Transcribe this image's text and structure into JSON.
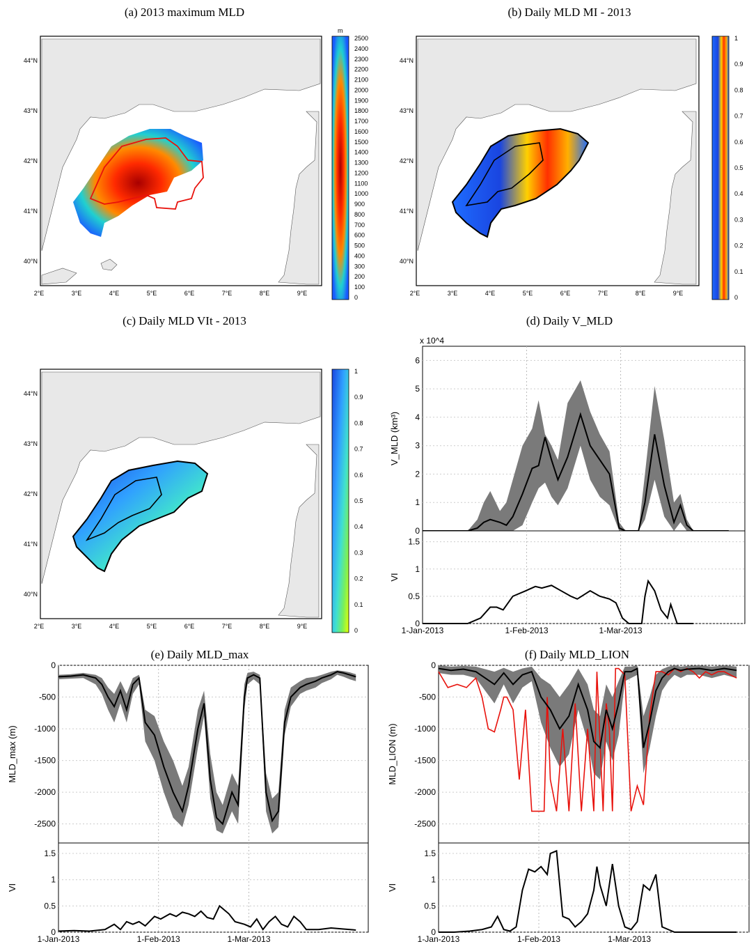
{
  "maps": [
    {
      "id": "a",
      "title": "(a) 2013 maximum MLD",
      "colorbar": {
        "unit": "m",
        "ticks": [
          "2500",
          "2400",
          "2300",
          "2200",
          "2100",
          "2000",
          "1900",
          "1800",
          "1700",
          "1600",
          "1500",
          "1400",
          "1300",
          "1200",
          "1100",
          "1000",
          "900",
          "800",
          "700",
          "600",
          "500",
          "400",
          "300",
          "200",
          "100",
          "0"
        ]
      },
      "lat_labels": [
        "44°N",
        "43°N",
        "42°N",
        "41°N",
        "40°N"
      ],
      "lon_labels": [
        "2°E",
        "3°E",
        "4°E",
        "5°E",
        "6°E",
        "7°E",
        "8°E",
        "9°E"
      ]
    },
    {
      "id": "b",
      "title": "(b) Daily MLD MI - 2013",
      "colorbar": {
        "unit": "",
        "ticks": [
          "1",
          "0.9",
          "0.8",
          "0.7",
          "0.6",
          "0.5",
          "0.4",
          "0.3",
          "0.2",
          "0.1",
          "0"
        ]
      },
      "lat_labels": [
        "44°N",
        "43°N",
        "42°N",
        "41°N",
        "40°N"
      ],
      "lon_labels": [
        "2°E",
        "3°E",
        "4°E",
        "5°E",
        "6°E",
        "7°E",
        "8°E",
        "9°E"
      ]
    },
    {
      "id": "c",
      "title": "(c) Daily MLD VIt - 2013",
      "colorbar": {
        "unit": "",
        "ticks": [
          "1",
          "0.9",
          "0.8",
          "0.7",
          "0.6",
          "0.5",
          "0.4",
          "0.3",
          "0.2",
          "0.1",
          "0"
        ]
      },
      "lat_labels": [
        "44°N",
        "43°N",
        "42°N",
        "41°N",
        "40°N"
      ],
      "lon_labels": [
        "2°E",
        "3°E",
        "4°E",
        "5°E",
        "6°E",
        "7°E",
        "8°E",
        "9°E"
      ]
    }
  ],
  "chart_data": [
    {
      "id": "d",
      "type": "area",
      "title": "(d) Daily V_MLD",
      "ylabel": "V_MLD (km³)",
      "y_multiplier": "x 10^4",
      "ylim": [
        0,
        6.5
      ],
      "yticks": [
        "0",
        "1",
        "2",
        "3",
        "4",
        "5",
        "6"
      ],
      "x": [
        0,
        7,
        14,
        17,
        19,
        21,
        24,
        26,
        28,
        31,
        34,
        36,
        38,
        40,
        42,
        45,
        49,
        52,
        55,
        58,
        61,
        63,
        65,
        67,
        69,
        72,
        75,
        78,
        80,
        82,
        84,
        86,
        88,
        90,
        95
      ],
      "mean": [
        0,
        0,
        0,
        0.1,
        0.3,
        0.4,
        0.3,
        0.2,
        0.5,
        1.3,
        2.2,
        2.3,
        3.3,
        2.5,
        1.8,
        2.6,
        4.1,
        3.0,
        2.5,
        2.0,
        0.1,
        0,
        0,
        0,
        1.0,
        3.4,
        1.6,
        0.3,
        0.9,
        0.2,
        0,
        0,
        0,
        0,
        0
      ],
      "upper": [
        0,
        0,
        0,
        0.4,
        1.0,
        1.4,
        0.7,
        1.0,
        1.8,
        3.0,
        3.6,
        4.6,
        3.4,
        3.0,
        2.5,
        4.5,
        5.3,
        4.2,
        3.4,
        2.8,
        0.3,
        0,
        0,
        0,
        2.0,
        5.1,
        3.2,
        1.0,
        1.3,
        0.4,
        0,
        0,
        0,
        0,
        0
      ],
      "lower": [
        0,
        0,
        0,
        0,
        0,
        0,
        0,
        0,
        0,
        0.2,
        1.0,
        1.5,
        1.7,
        1.2,
        0.9,
        1.5,
        3.0,
        1.8,
        1.2,
        0.9,
        0,
        0,
        0,
        0,
        0.4,
        1.8,
        0.5,
        0,
        0.3,
        0,
        0,
        0,
        0,
        0,
        0
      ]
    },
    {
      "id": "d-vi",
      "type": "line",
      "ylabel": "VI",
      "ylim": [
        0,
        1.7
      ],
      "yticks": [
        "0",
        "0.5",
        "1",
        "1.5"
      ],
      "xticks": [
        "1-Jan-2013",
        "1-Feb-2013",
        "1-Mar-2013"
      ],
      "x": [
        0,
        8,
        14,
        18,
        21,
        23,
        25,
        28,
        32,
        35,
        37,
        40,
        43,
        46,
        48,
        52,
        55,
        58,
        60,
        62,
        64,
        66,
        68,
        69,
        70,
        72,
        74,
        76,
        77,
        79,
        80,
        82,
        84
      ],
      "values": [
        0,
        0,
        0,
        0.1,
        0.3,
        0.3,
        0.25,
        0.5,
        0.6,
        0.68,
        0.65,
        0.7,
        0.6,
        0.5,
        0.45,
        0.6,
        0.5,
        0.45,
        0.38,
        0.1,
        0,
        0,
        0,
        0.5,
        0.78,
        0.6,
        0.25,
        0.1,
        0.35,
        0,
        0,
        0,
        0
      ]
    },
    {
      "id": "e",
      "type": "area",
      "title": "(e) Daily MLD_max",
      "ylabel": "MLD_max (m)",
      "ylim": [
        -2800,
        0
      ],
      "yticks": [
        "0",
        "-500",
        "-1000",
        "-1500",
        "-2000",
        "-2500"
      ],
      "x": [
        0,
        4,
        8,
        12,
        14,
        16,
        18,
        20,
        22,
        24,
        26,
        28,
        31,
        34,
        37,
        40,
        42,
        45,
        47,
        49,
        51,
        53,
        56,
        58,
        60,
        61,
        63,
        65,
        67,
        69,
        71,
        73,
        75,
        78,
        80,
        83,
        85,
        88,
        90,
        92,
        94,
        96
      ],
      "mean": [
        -180,
        -170,
        -150,
        -200,
        -300,
        -500,
        -650,
        -400,
        -700,
        -300,
        -200,
        -900,
        -1100,
        -1600,
        -2000,
        -2300,
        -1900,
        -1000,
        -600,
        -1800,
        -2400,
        -2500,
        -2000,
        -2200,
        -500,
        -200,
        -150,
        -200,
        -2000,
        -2450,
        -2300,
        -900,
        -500,
        -350,
        -300,
        -250,
        -200,
        -150,
        -100,
        -120,
        -150,
        -180
      ],
      "upper": [
        -150,
        -140,
        -120,
        -150,
        -200,
        -350,
        -450,
        -250,
        -450,
        -200,
        -150,
        -700,
        -800,
        -1200,
        -1500,
        -1900,
        -1600,
        -700,
        -400,
        -1400,
        -2000,
        -2200,
        -1700,
        -1900,
        -300,
        -120,
        -100,
        -150,
        -1700,
        -2100,
        -2000,
        -700,
        -350,
        -250,
        -200,
        -180,
        -150,
        -100,
        -80,
        -90,
        -110,
        -140
      ],
      "lower": [
        -220,
        -210,
        -200,
        -300,
        -450,
        -700,
        -900,
        -600,
        -900,
        -450,
        -300,
        -1200,
        -1500,
        -2000,
        -2400,
        -2550,
        -2200,
        -1300,
        -800,
        -2100,
        -2600,
        -2650,
        -2300,
        -2500,
        -700,
        -300,
        -220,
        -300,
        -2300,
        -2650,
        -2550,
        -1100,
        -650,
        -450,
        -400,
        -350,
        -280,
        -220,
        -150,
        -180,
        -220,
        -250
      ]
    },
    {
      "id": "e-vi",
      "type": "line",
      "ylabel": "VI",
      "ylim": [
        0,
        1.7
      ],
      "yticks": [
        "0",
        "0.5",
        "1",
        "1.5"
      ],
      "xticks": [
        "1-Jan-2013",
        "1-Feb-2013",
        "1-Mar-2013"
      ],
      "x": [
        0,
        5,
        10,
        15,
        18,
        20,
        22,
        24,
        26,
        28,
        31,
        33,
        36,
        38,
        40,
        42,
        44,
        46,
        48,
        50,
        52,
        55,
        57,
        60,
        62,
        64,
        66,
        68,
        70,
        72,
        74,
        76,
        78,
        80,
        84,
        88,
        92,
        96
      ],
      "values": [
        0.02,
        0.03,
        0.02,
        0.05,
        0.15,
        0.05,
        0.2,
        0.15,
        0.2,
        0.12,
        0.3,
        0.25,
        0.35,
        0.3,
        0.38,
        0.35,
        0.3,
        0.4,
        0.28,
        0.25,
        0.5,
        0.35,
        0.2,
        0.15,
        0.1,
        0.25,
        0.05,
        0.2,
        0.3,
        0.15,
        0.1,
        0.3,
        0.2,
        0.05,
        0.05,
        0.08,
        0.06,
        0.04
      ]
    },
    {
      "id": "f",
      "type": "area",
      "title": "(f) Daily MLD_LION",
      "ylabel": "MLD_LION (m)",
      "ylim": [
        -2800,
        0
      ],
      "yticks": [
        "0",
        "-500",
        "-1000",
        "-1500",
        "-2000",
        "-2500"
      ],
      "x": [
        0,
        4,
        8,
        12,
        15,
        18,
        21,
        24,
        27,
        30,
        33,
        36,
        39,
        42,
        45,
        48,
        50,
        52,
        54,
        56,
        58,
        60,
        62,
        64,
        66,
        68,
        70,
        72,
        74,
        76,
        78,
        80,
        84,
        88,
        92,
        96
      ],
      "mean": [
        -50,
        -80,
        -60,
        -100,
        -200,
        -300,
        -120,
        -300,
        -150,
        -100,
        -500,
        -700,
        -1000,
        -800,
        -300,
        -700,
        -1200,
        -1300,
        -700,
        -1000,
        -600,
        -100,
        -100,
        -50,
        -1300,
        -900,
        -400,
        -200,
        -100,
        -50,
        -80,
        -60,
        -50,
        -80,
        -50,
        -80
      ],
      "upper": [
        0,
        -20,
        -10,
        -20,
        -60,
        -100,
        -40,
        -100,
        -50,
        -20,
        -200,
        -300,
        -500,
        -300,
        -50,
        -300,
        -700,
        -800,
        -300,
        -500,
        -250,
        -20,
        -20,
        0,
        -800,
        -500,
        -150,
        -60,
        -20,
        0,
        -20,
        -10,
        0,
        -20,
        0,
        -20
      ],
      "lower": [
        -120,
        -150,
        -150,
        -200,
        -400,
        -600,
        -300,
        -600,
        -350,
        -250,
        -900,
        -1300,
        -1600,
        -1400,
        -700,
        -1200,
        -1700,
        -1800,
        -1200,
        -1500,
        -1100,
        -250,
        -200,
        -150,
        -1700,
        -1300,
        -800,
        -400,
        -250,
        -150,
        -200,
        -150,
        -150,
        -200,
        -150,
        -200
      ]
    },
    {
      "id": "f-red",
      "type": "line",
      "series_color": "#e8120c",
      "x": [
        0,
        3,
        6,
        9,
        12,
        14,
        16,
        18,
        20,
        21,
        22,
        24,
        26,
        28,
        30,
        32,
        34,
        35,
        36,
        38,
        40,
        42,
        44,
        46,
        48,
        50,
        51,
        52,
        53,
        54,
        55,
        56,
        57,
        58,
        59,
        60,
        62,
        64,
        66,
        68,
        70,
        72,
        74,
        76,
        78,
        80,
        82,
        84,
        86,
        88,
        90,
        92,
        94,
        96
      ],
      "values": [
        -100,
        -350,
        -300,
        -350,
        -200,
        -500,
        -1000,
        -1050,
        -700,
        -500,
        -500,
        -700,
        -1800,
        -700,
        -2300,
        -2300,
        -2300,
        -500,
        -1800,
        -2300,
        -1000,
        -2300,
        -600,
        -2300,
        -1000,
        -2300,
        -100,
        -1200,
        -2300,
        -600,
        -1000,
        -2300,
        -50,
        -50,
        -100,
        -150,
        -2300,
        -1900,
        -2200,
        -800,
        -100,
        -100,
        -150,
        -50,
        -100,
        -50,
        -100,
        -200,
        -100,
        -150,
        -100,
        -100,
        -150,
        -200
      ]
    },
    {
      "id": "f-vi",
      "type": "line",
      "ylabel": "VI",
      "ylim": [
        0,
        1.7
      ],
      "yticks": [
        "0",
        "0.5",
        "1",
        "1.5"
      ],
      "xticks": [
        "1-Jan-2013",
        "1-Feb-2013",
        "1-Mar-2013"
      ],
      "x": [
        0,
        5,
        10,
        14,
        17,
        19,
        21,
        23,
        25,
        27,
        29,
        31,
        33,
        35,
        36,
        38,
        40,
        42,
        44,
        46,
        48,
        50,
        51,
        52,
        54,
        56,
        58,
        60,
        62,
        64,
        66,
        68,
        70,
        72,
        74,
        76,
        78,
        80,
        85,
        90,
        96
      ],
      "values": [
        0,
        0,
        0.02,
        0.05,
        0.1,
        0.3,
        0.05,
        0.02,
        0.1,
        0.8,
        1.2,
        1.15,
        1.25,
        1.1,
        1.5,
        1.55,
        0.3,
        0.25,
        0.1,
        0.2,
        0.35,
        0.8,
        1.25,
        0.9,
        0.5,
        1.3,
        0.5,
        0.1,
        0.05,
        0.2,
        0.9,
        0.8,
        1.1,
        0.1,
        0.05,
        0,
        0,
        0,
        0,
        0,
        0
      ]
    }
  ]
}
